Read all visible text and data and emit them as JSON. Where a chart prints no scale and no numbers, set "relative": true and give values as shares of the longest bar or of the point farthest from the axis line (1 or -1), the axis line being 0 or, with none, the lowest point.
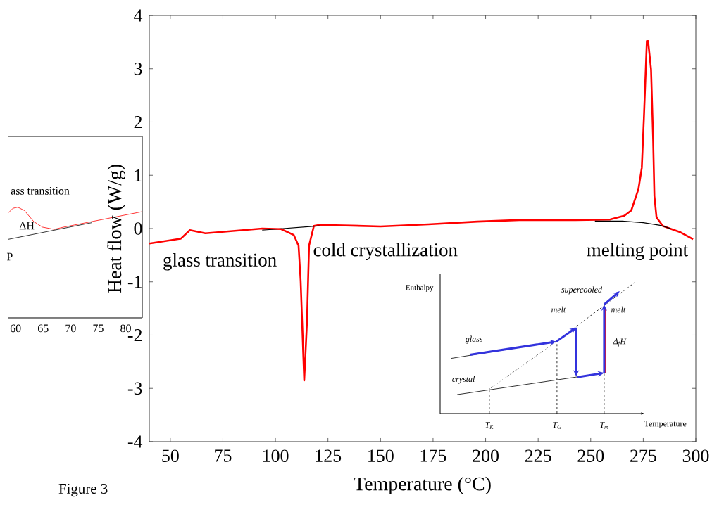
{
  "chart_data": [
    {
      "type": "line",
      "xlabel": "Temperature (°C)",
      "ylabel": "Heat flow (W/g)",
      "xlim": [
        40,
        300
      ],
      "ylim": [
        -4,
        4
      ],
      "xticks": [
        50,
        75,
        100,
        125,
        150,
        175,
        200,
        225,
        250,
        275,
        300
      ],
      "yticks": [
        -4,
        -3,
        -2,
        -1,
        0,
        1,
        2,
        3,
        4
      ],
      "series": [
        {
          "color": "#ff0000",
          "x": [
            40,
            55,
            59.3,
            66.7,
            93.7,
            102.7,
            108.7,
            111,
            112,
            113.7,
            115,
            116,
            118.3,
            121,
            150,
            172.7,
            196,
            216,
            242.7,
            259.3,
            266,
            269.3,
            272.7,
            274.3,
            275.3,
            276.7,
            277.3,
            278.7,
            279.7,
            280.3,
            281.3,
            284.3,
            287.7,
            292.7,
            298.7
          ],
          "values": [
            -0.28,
            -0.19,
            -0.03,
            -0.09,
            0,
            -0.01,
            -0.12,
            -0.32,
            -0.98,
            -2.85,
            -1.77,
            -0.32,
            0.05,
            0.07,
            0.04,
            0.08,
            0.13,
            0.16,
            0.16,
            0.17,
            0.24,
            0.34,
            0.74,
            1.14,
            2.07,
            3.52,
            3.52,
            2.99,
            1.67,
            0.61,
            0.21,
            0.05,
            0,
            -0.07,
            -0.2
          ]
        },
        {
          "color": "#000000",
          "x": [
            93.7,
            121,
            160,
            252,
            265,
            275,
            283,
            288
          ],
          "values": [
            -0.03,
            0.05,
            null,
            0.14,
            0.14,
            0.11,
            0.06,
            0
          ]
        }
      ],
      "annotations": [
        "glass transition",
        "cold crystallization",
        "melting point",
        "Figure 3"
      ]
    },
    {
      "type": "line",
      "relative": true,
      "xlim": [
        58.7,
        83
      ],
      "xticks": [
        60,
        65,
        70,
        75,
        80
      ],
      "tick_labels": "x",
      "series": [
        {
          "color": "#ff0000",
          "x": [
            58.7,
            59.5,
            60.4,
            61.6,
            63.3,
            64.9,
            67.0,
            68.7,
            83
          ],
          "values": [
            0.95,
            0.99,
            1.0,
            0.97,
            0.87,
            0.82,
            0.8,
            0.82,
            0.96
          ]
        },
        {
          "color": "#000000",
          "x": [
            58.7,
            73.8
          ],
          "values": [
            0.71,
            0.86
          ]
        }
      ],
      "annotations": [
        "ass transition",
        "ΔH",
        "P"
      ]
    },
    {
      "type": "other",
      "xlabel": "Temperature",
      "ylabel": "Enthalpy",
      "annotations": [
        "T$_{K}$",
        "T$_{G}$",
        "T$_{m}$",
        "glass",
        "crystal",
        "supercooled",
        "melt",
        "melt",
        "Δ$_{f}$H"
      ]
    }
  ]
}
